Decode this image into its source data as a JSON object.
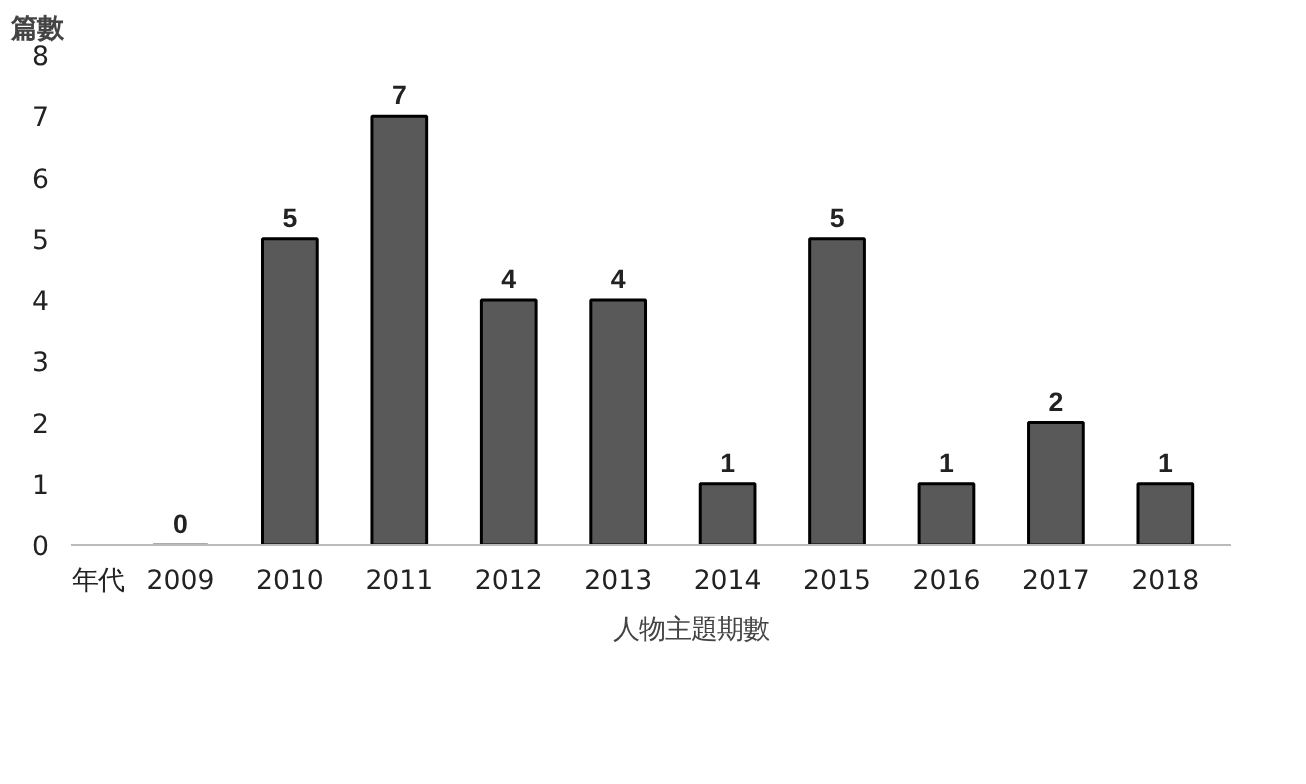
{
  "chart_data": {
    "type": "bar",
    "xlabel": "年代",
    "ylabel": "篇數",
    "categories": [
      "2009",
      "2010",
      "2011",
      "2012",
      "2013",
      "2014",
      "2015",
      "2016",
      "2017",
      "2018"
    ],
    "series": [
      {
        "name": "人物主題期數",
        "color": "#595959",
        "values": [
          0,
          5,
          7,
          4,
          4,
          1,
          5,
          1,
          2,
          1
        ]
      }
    ],
    "ylim": [
      0,
      8
    ],
    "yticks": [
      0,
      1,
      2,
      3,
      4,
      5,
      6,
      7,
      8
    ],
    "grid": false,
    "legend": "bottom",
    "data_labels": true
  }
}
